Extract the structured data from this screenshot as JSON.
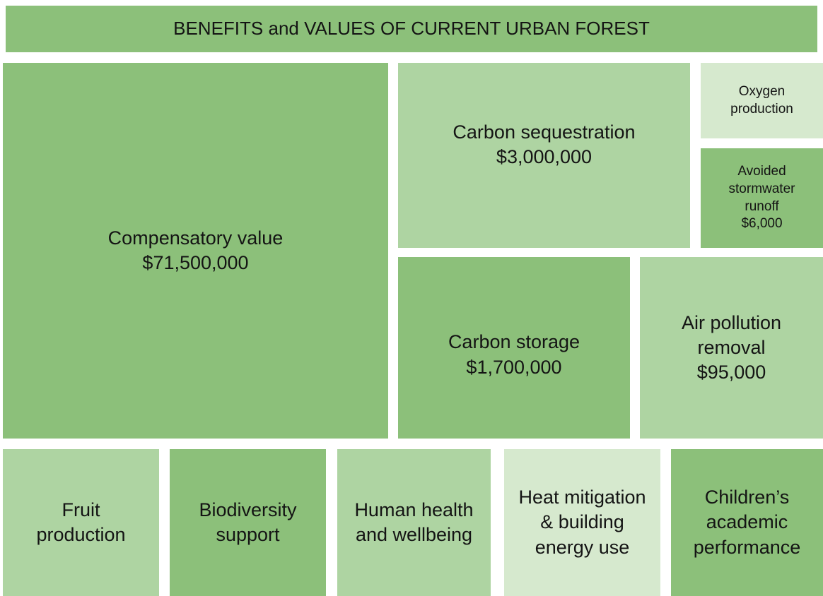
{
  "header": {
    "title": "BENEFITS and VALUES OF CURRENT URBAN FOREST"
  },
  "tiles": [
    {
      "label": "Compensatory value",
      "value": "$71,500,000"
    },
    {
      "label": "Carbon sequestration",
      "value": "$3,000,000"
    },
    {
      "label": "Oxygen production"
    },
    {
      "label": "Avoided stormwater runoff",
      "value": "$6,000"
    },
    {
      "label": "Carbon storage",
      "value": "$1,700,000"
    },
    {
      "label": "Air pollution removal",
      "value": "$95,000"
    },
    {
      "label": "Fruit production"
    },
    {
      "label": "Biodiversity support"
    },
    {
      "label": "Human health and wellbeing"
    },
    {
      "label": "Heat mitigation & building energy use"
    },
    {
      "label": "Children’s academic performance"
    }
  ]
}
